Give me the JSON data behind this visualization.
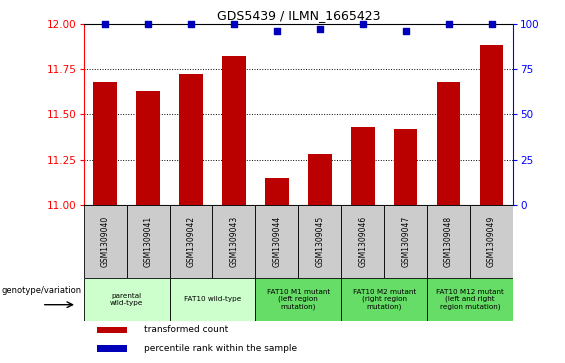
{
  "title": "GDS5439 / ILMN_1665423",
  "samples": [
    "GSM1309040",
    "GSM1309041",
    "GSM1309042",
    "GSM1309043",
    "GSM1309044",
    "GSM1309045",
    "GSM1309046",
    "GSM1309047",
    "GSM1309048",
    "GSM1309049"
  ],
  "transformed_counts": [
    11.68,
    11.63,
    11.72,
    11.82,
    11.15,
    11.28,
    11.43,
    11.42,
    11.68,
    11.88
  ],
  "percentile_ranks": [
    100,
    100,
    100,
    100,
    96,
    97,
    100,
    96,
    100,
    100
  ],
  "ylim_left": [
    11.0,
    12.0
  ],
  "ylim_right": [
    0,
    100
  ],
  "yticks_left": [
    11.0,
    11.25,
    11.5,
    11.75,
    12.0
  ],
  "yticks_right": [
    0,
    25,
    50,
    75,
    100
  ],
  "bar_color": "#bb0000",
  "dot_color": "#0000bb",
  "groups": [
    {
      "label": "parental\nwild-type",
      "start": 0,
      "end": 2,
      "color": "#ccffcc"
    },
    {
      "label": "FAT10 wild-type",
      "start": 2,
      "end": 4,
      "color": "#ccffcc"
    },
    {
      "label": "FAT10 M1 mutant\n(left region\nmutation)",
      "start": 4,
      "end": 6,
      "color": "#66dd66"
    },
    {
      "label": "FAT10 M2 mutant\n(right region\nmutation)",
      "start": 6,
      "end": 8,
      "color": "#66dd66"
    },
    {
      "label": "FAT10 M12 mutant\n(left and right\nregion mutation)",
      "start": 8,
      "end": 10,
      "color": "#66dd66"
    }
  ],
  "legend_items": [
    {
      "color": "#bb0000",
      "label": "transformed count"
    },
    {
      "color": "#0000bb",
      "label": "percentile rank within the sample"
    }
  ],
  "genotype_label": "genotype/variation",
  "sample_bg_color": "#cccccc",
  "plot_bg_color": "#ffffff"
}
